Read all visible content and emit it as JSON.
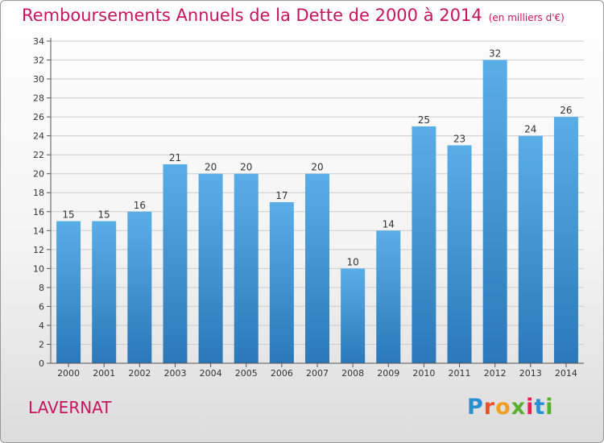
{
  "title": "Remboursements Annuels de la Dette de 2000 à 2014",
  "unit": "(en milliers d'€)",
  "commune": "LAVERNAT",
  "logo": "Proxiti",
  "colors": {
    "title": "#c8135e",
    "bar_top": "#5aaee8",
    "bar_bottom": "#2a78b8",
    "grid": "#cccccc"
  },
  "chart_data": {
    "type": "bar",
    "title": "Remboursements Annuels de la Dette de 2000 à 2014",
    "subtitle": "(en milliers d'€)",
    "xlabel": "",
    "ylabel": "",
    "categories": [
      "2000",
      "2001",
      "2002",
      "2003",
      "2004",
      "2005",
      "2006",
      "2007",
      "2008",
      "2009",
      "2010",
      "2011",
      "2012",
      "2013",
      "2014"
    ],
    "values": [
      15,
      15,
      16,
      21,
      20,
      20,
      17,
      20,
      10,
      14,
      25,
      23,
      32,
      24,
      26
    ],
    "ylim": [
      0,
      34
    ],
    "yticks": [
      0,
      2,
      4,
      6,
      8,
      10,
      12,
      14,
      16,
      18,
      20,
      22,
      24,
      26,
      28,
      30,
      32,
      34
    ],
    "grid": true,
    "data_labels": true
  }
}
